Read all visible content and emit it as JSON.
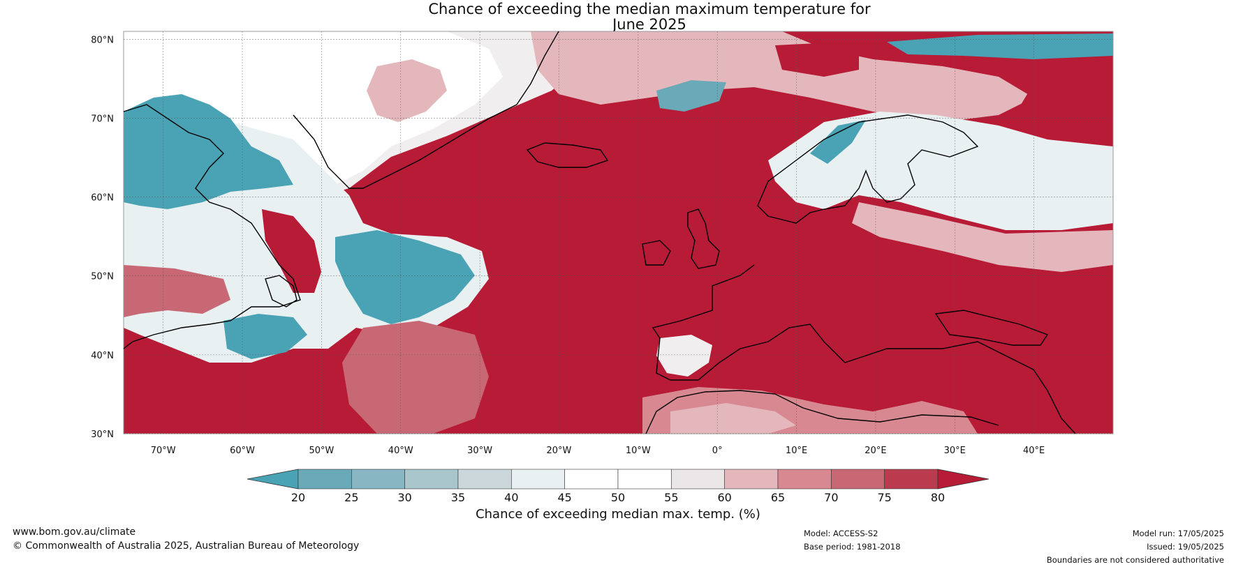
{
  "title_line1": "Chance of exceeding the median maximum temperature for",
  "title_line2": "June 2025",
  "map": {
    "projection": "equirectangular",
    "lon_range": [
      -75,
      50
    ],
    "lat_range": [
      30,
      81
    ],
    "lat_ticks": [
      "30°N",
      "40°N",
      "50°N",
      "60°N",
      "70°N",
      "80°N"
    ],
    "lon_ticks": [
      "70°W",
      "60°W",
      "50°W",
      "40°W",
      "30°W",
      "20°W",
      "10°W",
      "0°",
      "10°E",
      "20°E",
      "30°E",
      "40°E"
    ],
    "lat_tick_values": [
      30,
      40,
      50,
      60,
      70,
      80
    ],
    "lon_tick_values": [
      -70,
      -60,
      -50,
      -40,
      -30,
      -20,
      -10,
      0,
      10,
      20,
      30,
      40
    ]
  },
  "colorbar": {
    "ticks": [
      "20",
      "25",
      "30",
      "35",
      "40",
      "45",
      "50",
      "55",
      "60",
      "65",
      "70",
      "75",
      "80"
    ],
    "colors": [
      "#4aa3b5",
      "#6aa9b8",
      "#88b6c2",
      "#a9c6cd",
      "#cbd7da",
      "#e8f0f1",
      "#ffffff",
      "#ffffff",
      "#ebe7e8",
      "#e4b7bd",
      "#d78891",
      "#c86874",
      "#bb3b4e",
      "#b71b36"
    ],
    "title": "Chance of exceeding median max. temp. (%)"
  },
  "footer": {
    "website": "www.bom.gov.au/climate",
    "copyright": "© Commonwealth of Australia 2025, Australian Bureau of Meteorology",
    "model": "Model: ACCESS-S2",
    "base_period": "Base period: 1981-2018",
    "model_run": "Model run: 17/05/2025",
    "issued": "Issued: 19/05/2025",
    "disclaimer": "Boundaries are not considered authoritative"
  }
}
